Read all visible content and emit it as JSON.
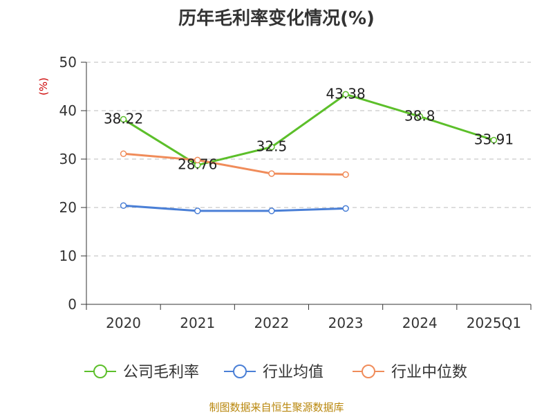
{
  "chart_data": {
    "type": "line",
    "title": "历年毛利率变化情况(%)",
    "ylabel": "(%)",
    "categories": [
      "2020",
      "2021",
      "2022",
      "2023",
      "2024",
      "2025Q1"
    ],
    "ylim": [
      0,
      50
    ],
    "yticks": [
      0,
      10,
      20,
      30,
      40,
      50
    ],
    "grid": true,
    "legend_position": "bottom",
    "series": [
      {
        "name": "公司毛利率",
        "color": "#5cbf2a",
        "values": [
          38.22,
          28.76,
          32.5,
          43.38,
          38.8,
          33.91
        ],
        "labels": [
          "38.22",
          "28.76",
          "32.5",
          "43.38",
          "38.8",
          "33.91"
        ]
      },
      {
        "name": "行业均值",
        "color": "#4a7fd6",
        "values": [
          20.4,
          19.3,
          19.3,
          19.8,
          null,
          null
        ]
      },
      {
        "name": "行业中位数",
        "color": "#f08c5a",
        "values": [
          31.1,
          29.8,
          27.0,
          26.8,
          null,
          null
        ]
      }
    ]
  },
  "footer": {
    "source": "制图数据来自恒生聚源数据库"
  }
}
